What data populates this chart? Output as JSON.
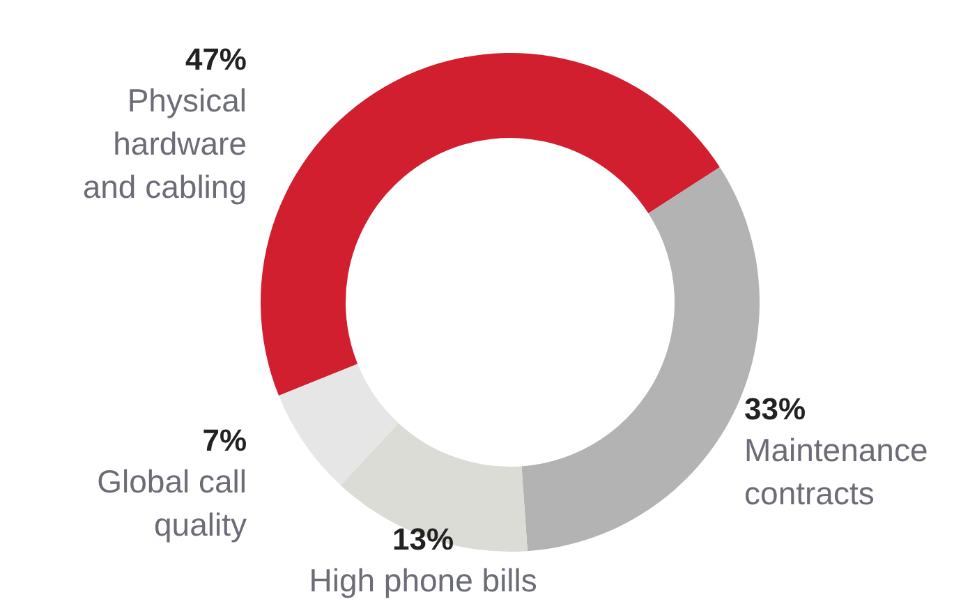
{
  "chart_data": {
    "type": "donut",
    "categories": [
      "Physical hardware and cabling",
      "Maintenance contracts",
      "High phone bills",
      "Global call quality"
    ],
    "values": [
      47,
      33,
      13,
      7
    ],
    "colors": [
      "#d21f2f",
      "#b3b3b3",
      "#dcdcd6",
      "#e6e6e6"
    ],
    "value_labels": [
      "47%",
      "33%",
      "13%",
      "7%"
    ]
  }
}
